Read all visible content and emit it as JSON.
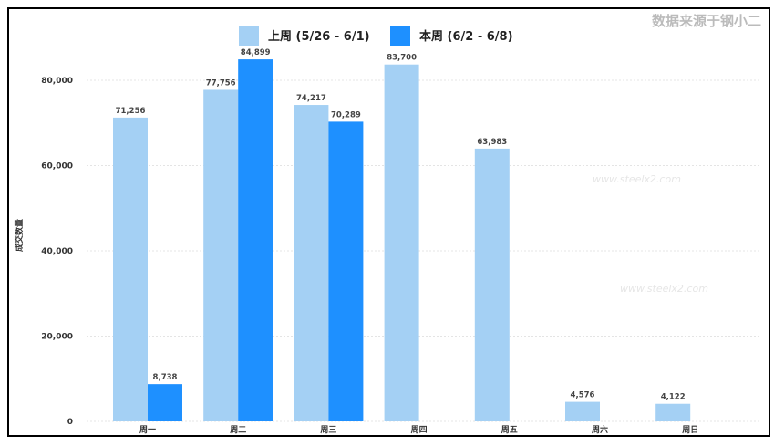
{
  "source_note": "数据来源于钢小二",
  "watermark": "www.steelx2.com",
  "colors": {
    "last_week": "#A4D0F4",
    "this_week": "#1E90FF"
  },
  "chart_data": {
    "type": "bar",
    "title": "",
    "xlabel": "",
    "ylabel": "成交数量",
    "ylim": [
      0,
      90000
    ],
    "yticks": [
      0,
      20000,
      40000,
      60000,
      80000
    ],
    "ytick_labels": [
      "0",
      "20,000",
      "40,000",
      "60,000",
      "80,000"
    ],
    "grid": true,
    "legend_placement": "top-center",
    "categories": [
      "周一",
      "周二",
      "周三",
      "周四",
      "周五",
      "周六",
      "周日"
    ],
    "series": [
      {
        "name": "上周 (5/26 - 6/1)",
        "values": [
          71256,
          77756,
          74217,
          83700,
          63983,
          4576,
          4122
        ],
        "labels": [
          "71,256",
          "77,756",
          "74,217",
          "83,700",
          "63,983",
          "4,576",
          "4,122"
        ]
      },
      {
        "name": "本周 (6/2 - 6/8)",
        "values": [
          8738,
          84899,
          70289,
          null,
          null,
          null,
          null
        ],
        "labels": [
          "8,738",
          "84,899",
          "70,289",
          null,
          null,
          null,
          null
        ]
      }
    ]
  }
}
